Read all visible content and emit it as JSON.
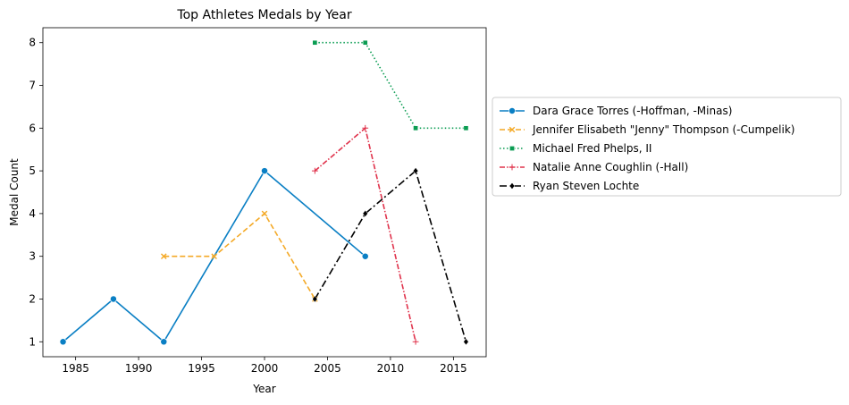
{
  "chart_data": {
    "type": "line",
    "title": "Top Athletes Medals by Year",
    "xlabel": "Year",
    "ylabel": "Medal Count",
    "xlim": [
      1982.4,
      2017.6
    ],
    "ylim": [
      0.65,
      8.35
    ],
    "xticks": [
      1985,
      1990,
      1995,
      2000,
      2005,
      2010,
      2015
    ],
    "yticks": [
      1,
      2,
      3,
      4,
      5,
      6,
      7,
      8
    ],
    "grid": false,
    "legend_position": "right, outside plot",
    "series": [
      {
        "name": "Dara Grace Torres (-Hoffman, -Minas)",
        "color": "#0a7fc4",
        "dash": "solid",
        "marker": "circle",
        "points": [
          [
            1984,
            1
          ],
          [
            1988,
            2
          ],
          [
            1992,
            1
          ],
          [
            2000,
            5
          ],
          [
            2008,
            3
          ]
        ]
      },
      {
        "name": "Jennifer Elisabeth \"Jenny\" Thompson (-Cumpelik)",
        "color": "#f4a926",
        "dash": "dashed",
        "marker": "x",
        "points": [
          [
            1992,
            3
          ],
          [
            1996,
            3
          ],
          [
            2000,
            4
          ],
          [
            2004,
            2
          ]
        ]
      },
      {
        "name": "Michael Fred Phelps, II",
        "color": "#0a9c52",
        "dash": "dotted",
        "marker": "square",
        "points": [
          [
            2004,
            8
          ],
          [
            2008,
            8
          ],
          [
            2012,
            6
          ],
          [
            2016,
            6
          ]
        ]
      },
      {
        "name": "Natalie Anne Coughlin (-Hall)",
        "color": "#e0334c",
        "dash": "dashdot",
        "marker": "plus",
        "points": [
          [
            2004,
            5
          ],
          [
            2008,
            6
          ],
          [
            2012,
            1
          ]
        ]
      },
      {
        "name": "Ryan Steven Lochte",
        "color": "#000000",
        "dash": "dashdot-long",
        "marker": "diamond",
        "points": [
          [
            2004,
            2
          ],
          [
            2008,
            4
          ],
          [
            2012,
            5
          ],
          [
            2016,
            1
          ]
        ]
      }
    ]
  }
}
